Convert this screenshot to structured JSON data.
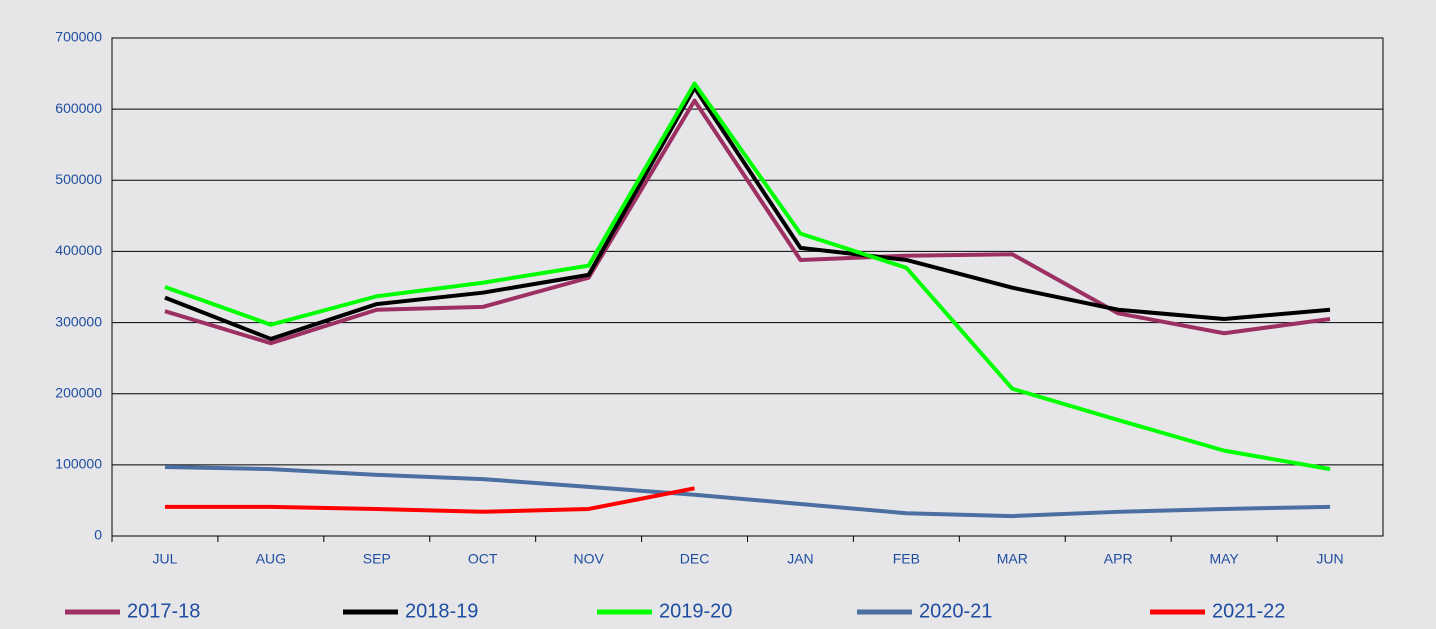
{
  "chart_data": {
    "type": "line",
    "categories": [
      "JUL",
      "AUG",
      "SEP",
      "OCT",
      "NOV",
      "DEC",
      "JAN",
      "FEB",
      "MAR",
      "APR",
      "MAY",
      "JUN"
    ],
    "series": [
      {
        "name": "2017-18",
        "color": "#9c3063",
        "values": [
          316000,
          271000,
          318000,
          322000,
          363000,
          612000,
          388000,
          394000,
          396000,
          313000,
          285000,
          305000
        ]
      },
      {
        "name": "2018-19",
        "color": "#000000",
        "values": [
          335000,
          277000,
          326000,
          342000,
          367000,
          630000,
          405000,
          388000,
          349000,
          318000,
          305000,
          318000
        ]
      },
      {
        "name": "2019-20",
        "color": "#00ff00",
        "values": [
          350000,
          297000,
          337000,
          356000,
          380000,
          636000,
          425000,
          377000,
          207000,
          163000,
          120000,
          94000
        ]
      },
      {
        "name": "2020-21",
        "color": "#4a6fa0",
        "values": [
          97000,
          94000,
          86000,
          80000,
          69000,
          58000,
          45000,
          32000,
          28000,
          34000,
          38000,
          41000
        ]
      },
      {
        "name": "2021-22",
        "color": "#ff0000",
        "values": [
          41000,
          41000,
          38000,
          34000,
          38000,
          67000,
          null,
          null,
          null,
          null,
          null,
          null
        ]
      }
    ],
    "ylim": [
      0,
      700000
    ],
    "yticks": [
      0,
      100000,
      200000,
      300000,
      400000,
      500000,
      600000,
      700000
    ],
    "grid": true,
    "legend": "bottom"
  }
}
